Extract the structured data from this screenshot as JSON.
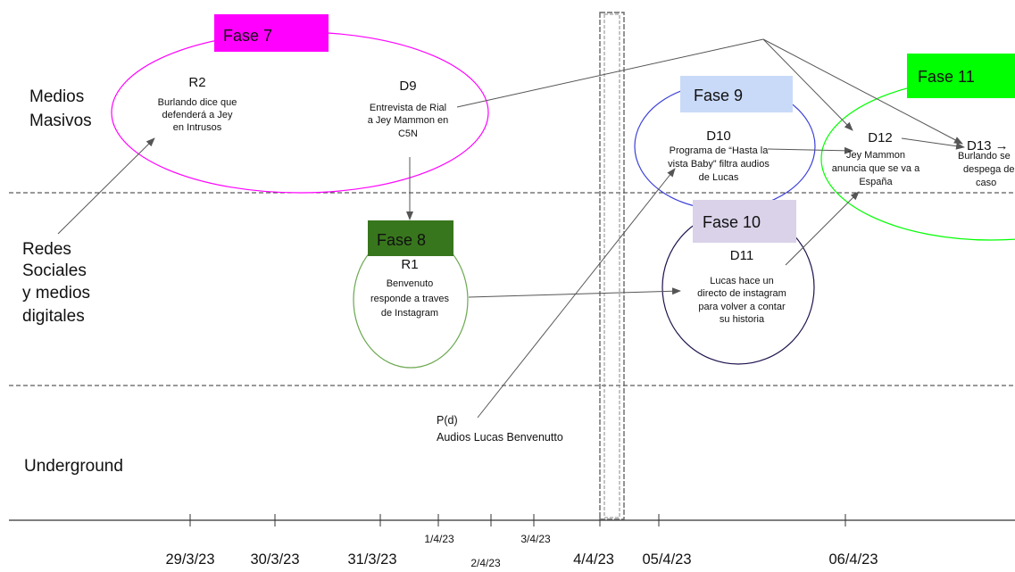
{
  "lanes": {
    "medios": [
      "Medios",
      "Masivos"
    ],
    "redes": [
      "Redes",
      "Sociales",
      "y medios",
      "digitales"
    ],
    "underground": "Underground"
  },
  "phases": {
    "f7": "Fase 7",
    "f8": "Fase 8",
    "f9": "Fase 9",
    "f10": "Fase 10",
    "f11": "Fase 11"
  },
  "phase_colors": {
    "f7": "#ff00ff",
    "f8": "#38761d",
    "f9": "#c9daf8",
    "f10": "#d9d2e9",
    "f11": "#00ff00"
  },
  "events": {
    "r2": {
      "code": "R2",
      "lines": [
        "Burlando dice que",
        "defenderá a Jey",
        "en Intrusos"
      ]
    },
    "d9": {
      "code": "D9",
      "lines": [
        "Entrevista de Rial",
        "a Jey Mammon en",
        "C5N"
      ]
    },
    "r1": {
      "code": "R1",
      "lines": [
        "Benvenuto",
        "responde a traves",
        "de Instagram"
      ]
    },
    "d10": {
      "code": "D10",
      "lines": [
        "Programa de “Hasta la",
        "vista Baby” filtra audios",
        "de Lucas"
      ]
    },
    "d11": {
      "code": "D11",
      "lines": [
        "Lucas hace un",
        "directo de instagram",
        "para volver a contar",
        "su historia"
      ]
    },
    "d12": {
      "code": "D12",
      "lines": [
        "Jey Mammon",
        "anuncia que se va a",
        "España"
      ]
    },
    "d13": {
      "code": "D13 →",
      "lines": [
        "Burlando se",
        "despega de",
        "caso"
      ]
    },
    "pd": {
      "code": "P(d)",
      "lines": [
        "Audios Lucas Benvenutto"
      ]
    }
  },
  "dates": {
    "d1": "29/3/23",
    "d2": "30/3/23",
    "d3": "31/3/23",
    "d4": "1/4/23",
    "d5": "2/4/23",
    "d6": "3/4/23",
    "d7": "4/4/23",
    "d8": "05/4/23",
    "d9": "06/4/23"
  }
}
